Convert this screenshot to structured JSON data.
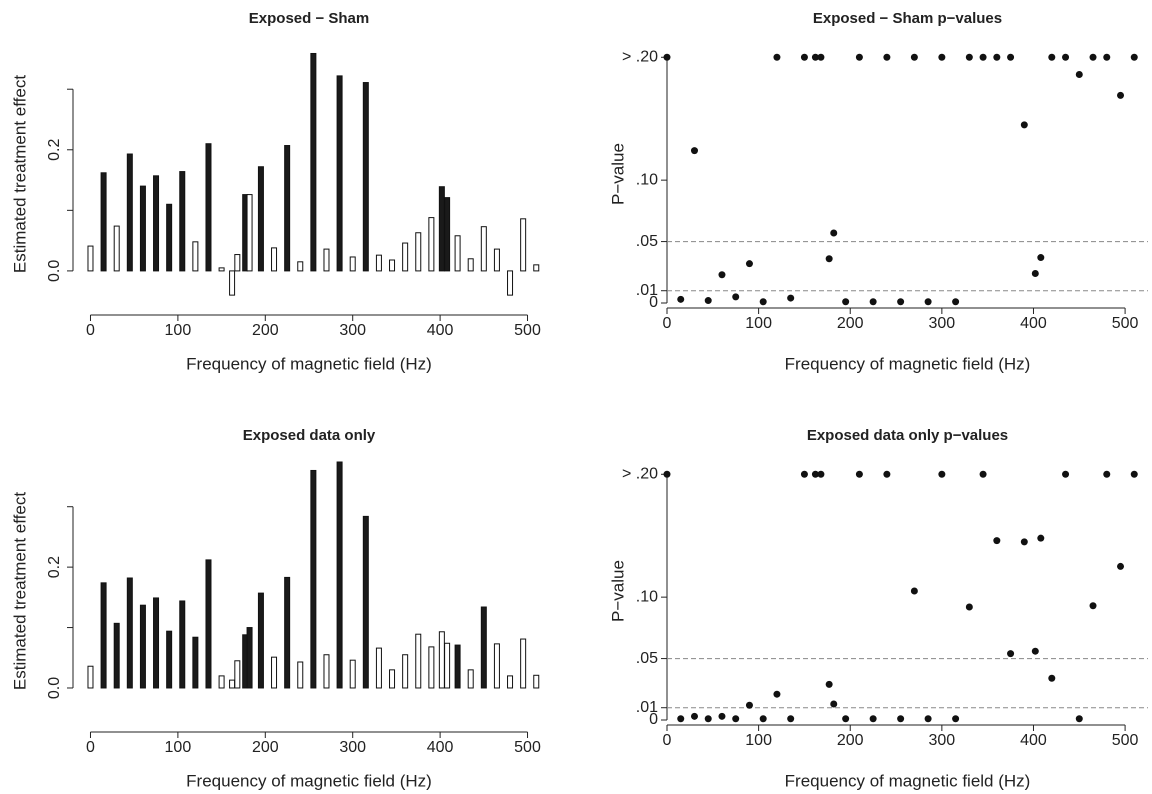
{
  "chart_data": [
    {
      "type": "bar",
      "title": "Exposed − Sham",
      "xlabel": "Frequency of magnetic field (Hz)",
      "ylabel": "Estimated treatment effect",
      "x": [
        0,
        15,
        30,
        45,
        60,
        75,
        90,
        105,
        120,
        135,
        150,
        162,
        168,
        177,
        182,
        195,
        210,
        225,
        240,
        255,
        270,
        285,
        300,
        315,
        330,
        345,
        360,
        375,
        390,
        402,
        408,
        420,
        435,
        450,
        465,
        480,
        495,
        510
      ],
      "values": [
        0.041,
        0.162,
        0.074,
        0.193,
        0.14,
        0.157,
        0.11,
        0.164,
        0.048,
        0.21,
        0.005,
        -0.04,
        0.027,
        0.126,
        0.126,
        0.172,
        0.038,
        0.207,
        0.015,
        0.359,
        0.036,
        0.322,
        0.023,
        0.311,
        0.026,
        0.018,
        0.046,
        0.063,
        0.088,
        0.139,
        0.121,
        0.058,
        0.02,
        0.073,
        0.036,
        -0.04,
        0.086,
        0.01
      ],
      "colors": [
        "#ffffff",
        "#1a1a1a",
        "#ffffff",
        "#1a1a1a",
        "#1a1a1a",
        "#1a1a1a",
        "#1a1a1a",
        "#1a1a1a",
        "#ffffff",
        "#1a1a1a",
        "#ffffff",
        "#ffffff",
        "#ffffff",
        "#1a1a1a",
        "#ffffff",
        "#1a1a1a",
        "#ffffff",
        "#1a1a1a",
        "#ffffff",
        "#1a1a1a",
        "#ffffff",
        "#1a1a1a",
        "#ffffff",
        "#1a1a1a",
        "#ffffff",
        "#ffffff",
        "#ffffff",
        "#ffffff",
        "#ffffff",
        "#1a1a1a",
        "#1a1a1a",
        "#ffffff",
        "#ffffff",
        "#ffffff",
        "#ffffff",
        "#ffffff",
        "#ffffff",
        "#ffffff"
      ],
      "xlim": [
        -20,
        520
      ],
      "ylim": [
        -0.053,
        0.373
      ],
      "xticks": [
        0,
        100,
        200,
        300,
        400,
        500
      ],
      "yticks": [
        {
          "value": 0,
          "label": "0.0"
        },
        {
          "value": 0.2,
          "label": "0.2"
        }
      ],
      "yminorticks": [
        0.1,
        0.3
      ]
    },
    {
      "type": "scatter",
      "title": "Exposed − Sham p−values",
      "xlabel": "Frequency of magnetic field (Hz)",
      "ylabel": "P−value",
      "x": [
        0,
        15,
        30,
        45,
        60,
        75,
        90,
        105,
        120,
        135,
        150,
        162,
        168,
        177,
        182,
        195,
        210,
        225,
        240,
        255,
        270,
        285,
        300,
        315,
        330,
        345,
        360,
        375,
        390,
        402,
        408,
        420,
        435,
        450,
        465,
        480,
        495,
        510
      ],
      "values": [
        0.2,
        0.003,
        0.124,
        0.002,
        0.023,
        0.005,
        0.032,
        0.001,
        0.2,
        0.004,
        0.2,
        0.2,
        0.2,
        0.036,
        0.057,
        0.001,
        0.2,
        0.001,
        0.2,
        0.001,
        0.2,
        0.001,
        0.2,
        0.001,
        0.2,
        0.2,
        0.2,
        0.2,
        0.145,
        0.024,
        0.037,
        0.2,
        0.2,
        0.186,
        0.2,
        0.2,
        0.169,
        0.2
      ],
      "color": "#111111",
      "hlines": [
        0.01,
        0.05
      ],
      "xlim": [
        0,
        525
      ],
      "ylim": [
        0,
        0.21
      ],
      "xticks": [
        0,
        100,
        200,
        300,
        400,
        500
      ],
      "yticks": [
        0,
        {
          "value": 0.01,
          "label": ".01"
        },
        {
          "value": 0.05,
          "label": ".05"
        },
        {
          "value": 0.1,
          "label": ".10"
        },
        {
          "value": 0.2,
          "label": "> .20"
        }
      ]
    },
    {
      "type": "bar",
      "title": "Exposed data only",
      "xlabel": "Frequency of magnetic field (Hz)",
      "ylabel": "Estimated treatment effect",
      "x": [
        0,
        15,
        30,
        45,
        60,
        75,
        90,
        105,
        120,
        135,
        150,
        162,
        168,
        177,
        182,
        195,
        210,
        225,
        240,
        255,
        270,
        285,
        300,
        315,
        330,
        345,
        360,
        375,
        390,
        402,
        408,
        420,
        435,
        450,
        465,
        480,
        495,
        510
      ],
      "values": [
        0.036,
        0.174,
        0.107,
        0.182,
        0.137,
        0.149,
        0.094,
        0.144,
        0.084,
        0.212,
        0.02,
        0.013,
        0.045,
        0.088,
        0.1,
        0.157,
        0.051,
        0.183,
        0.043,
        0.36,
        0.055,
        0.374,
        0.046,
        0.284,
        0.066,
        0.03,
        0.055,
        0.089,
        0.068,
        0.093,
        0.074,
        0.071,
        0.03,
        0.134,
        0.073,
        0.02,
        0.081,
        0.021
      ],
      "colors": [
        "#ffffff",
        "#1a1a1a",
        "#1a1a1a",
        "#1a1a1a",
        "#1a1a1a",
        "#1a1a1a",
        "#1a1a1a",
        "#1a1a1a",
        "#1a1a1a",
        "#1a1a1a",
        "#ffffff",
        "#ffffff",
        "#ffffff",
        "#1a1a1a",
        "#1a1a1a",
        "#1a1a1a",
        "#ffffff",
        "#1a1a1a",
        "#ffffff",
        "#1a1a1a",
        "#ffffff",
        "#1a1a1a",
        "#ffffff",
        "#1a1a1a",
        "#ffffff",
        "#ffffff",
        "#ffffff",
        "#ffffff",
        "#ffffff",
        "#ffffff",
        "#ffffff",
        "#1a1a1a",
        "#ffffff",
        "#1a1a1a",
        "#ffffff",
        "#ffffff",
        "#ffffff",
        "#ffffff"
      ],
      "xlim": [
        -20,
        520
      ],
      "ylim": [
        -0.053,
        0.374
      ],
      "xticks": [
        0,
        100,
        200,
        300,
        400,
        500
      ],
      "yticks": [
        {
          "value": 0,
          "label": "0.0"
        },
        {
          "value": 0.2,
          "label": "0.2"
        }
      ],
      "yminorticks": [
        0.1,
        0.3
      ]
    },
    {
      "type": "scatter",
      "title": "Exposed data only p−values",
      "xlabel": "Frequency of magnetic field (Hz)",
      "ylabel": "P−value",
      "x": [
        0,
        15,
        30,
        45,
        60,
        75,
        90,
        105,
        120,
        135,
        150,
        162,
        168,
        177,
        182,
        195,
        210,
        225,
        240,
        255,
        270,
        285,
        300,
        315,
        330,
        345,
        360,
        375,
        390,
        402,
        408,
        420,
        435,
        450,
        465,
        480,
        495,
        510
      ],
      "values": [
        0.2,
        0.001,
        0.003,
        0.001,
        0.003,
        0.001,
        0.012,
        0.001,
        0.021,
        0.001,
        0.2,
        0.2,
        0.2,
        0.029,
        0.013,
        0.001,
        0.2,
        0.001,
        0.2,
        0.001,
        0.105,
        0.001,
        0.2,
        0.001,
        0.092,
        0.2,
        0.146,
        0.054,
        0.145,
        0.056,
        0.148,
        0.034,
        0.2,
        0.001,
        0.093,
        0.2,
        0.125,
        0.2
      ],
      "color": "#111111",
      "hlines": [
        0.01,
        0.05
      ],
      "xlim": [
        0,
        525
      ],
      "ylim": [
        0,
        0.21
      ],
      "xticks": [
        0,
        100,
        200,
        300,
        400,
        500
      ],
      "yticks": [
        0,
        {
          "value": 0.01,
          "label": ".01"
        },
        {
          "value": 0.05,
          "label": ".05"
        },
        {
          "value": 0.1,
          "label": ".10"
        },
        {
          "value": 0.2,
          "label": "> .20"
        }
      ]
    }
  ]
}
